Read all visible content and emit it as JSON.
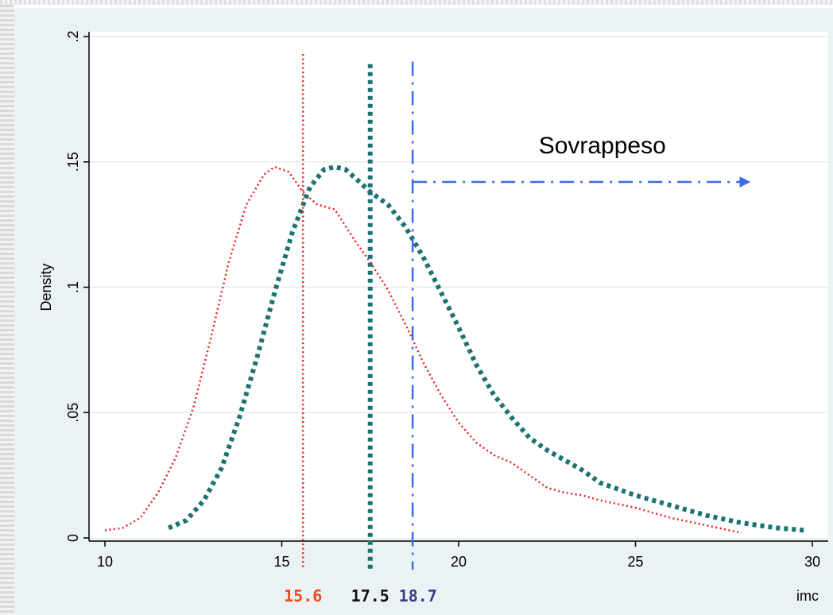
{
  "chart_data": {
    "type": "line",
    "xlabel": "imc",
    "ylabel": "Density",
    "xlim": [
      10,
      30
    ],
    "ylim": [
      0,
      0.2
    ],
    "x_ticks": [
      10,
      15,
      20,
      25,
      30
    ],
    "x_tick_labels": [
      "10",
      "15",
      "20",
      "25",
      "30"
    ],
    "y_ticks": [
      0,
      0.05,
      0.1,
      0.15,
      0.2
    ],
    "y_tick_labels": [
      "0",
      ".05",
      ".1",
      ".15",
      ".2"
    ],
    "grid": "horizontal",
    "annotation": {
      "text": "Sovrappeso",
      "arrow_from_x": 18.7,
      "arrow_to_x": 28.3,
      "arrow_y": 0.142,
      "color": "#3d6be6"
    },
    "series": [
      {
        "color": "#e8231b",
        "style": "dotted-thin",
        "x": [
          10.0,
          10.5,
          11.0,
          11.5,
          12.0,
          12.5,
          13.0,
          13.5,
          14.0,
          14.5,
          14.8,
          15.2,
          15.6,
          16.0,
          16.5,
          17.0,
          17.5,
          18.0,
          18.5,
          19.0,
          19.5,
          20.0,
          20.5,
          21.0,
          21.5,
          22.0,
          22.5,
          23.0,
          23.5,
          24.0,
          25.0,
          26.0,
          27.0,
          28.0
        ],
        "y": [
          0.003,
          0.004,
          0.008,
          0.018,
          0.032,
          0.052,
          0.08,
          0.11,
          0.133,
          0.145,
          0.148,
          0.146,
          0.138,
          0.133,
          0.131,
          0.12,
          0.11,
          0.099,
          0.085,
          0.07,
          0.057,
          0.046,
          0.038,
          0.033,
          0.03,
          0.025,
          0.02,
          0.018,
          0.017,
          0.015,
          0.012,
          0.008,
          0.005,
          0.002
        ]
      },
      {
        "color": "#1d7272",
        "style": "dotted-thick",
        "x": [
          11.8,
          12.3,
          12.8,
          13.3,
          13.8,
          14.3,
          14.8,
          15.3,
          15.8,
          16.2,
          16.5,
          16.8,
          17.2,
          17.5,
          18.0,
          18.5,
          19.0,
          19.5,
          20.0,
          20.5,
          21.0,
          21.5,
          22.0,
          22.5,
          23.0,
          23.5,
          24.0,
          25.0,
          26.0,
          27.0,
          28.0,
          29.0,
          29.8
        ],
        "y": [
          0.004,
          0.007,
          0.015,
          0.028,
          0.048,
          0.072,
          0.098,
          0.122,
          0.14,
          0.147,
          0.148,
          0.147,
          0.142,
          0.138,
          0.133,
          0.124,
          0.112,
          0.098,
          0.084,
          0.069,
          0.057,
          0.048,
          0.04,
          0.035,
          0.031,
          0.027,
          0.022,
          0.017,
          0.013,
          0.009,
          0.006,
          0.004,
          0.003
        ]
      }
    ],
    "vlines": [
      {
        "x": 15.6,
        "color": "#e8231b",
        "style": "dotted-thin",
        "y_top": 0.193,
        "label": "15.6",
        "label_color": "#f04a1d"
      },
      {
        "x": 17.5,
        "color": "#1d7272",
        "style": "dotted-thick",
        "y_top": 0.189,
        "label": "17.5",
        "label_color": "#111111"
      },
      {
        "x": 18.7,
        "color": "#3d6be6",
        "style": "dashdot",
        "y_top": 0.19,
        "label": "18.7",
        "label_color": "#3b3b8a"
      }
    ]
  }
}
